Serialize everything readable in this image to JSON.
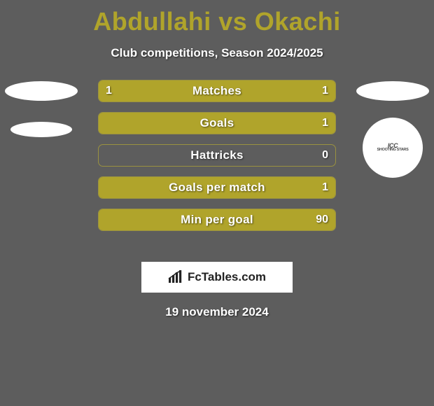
{
  "background_color": "#5d5d5d",
  "accent_color": "#b0a42b",
  "bar_bg_color": "#5d5d5d",
  "bar_border_color": "#9a9240",
  "title_color": "#b0a42b",
  "ellipse_color": "#ffffff",
  "text_color": "#ffffff",
  "title": "Abdullahi vs Okachi",
  "subtitle": "Club competitions, Season 2024/2025",
  "stats": [
    {
      "label": "Matches",
      "left_val": "1",
      "right_val": "1",
      "left_pct": 50,
      "right_pct": 50
    },
    {
      "label": "Goals",
      "left_val": "",
      "right_val": "1",
      "left_pct": 0,
      "right_pct": 100
    },
    {
      "label": "Hattricks",
      "left_val": "",
      "right_val": "0",
      "left_pct": 0,
      "right_pct": 0
    },
    {
      "label": "Goals per match",
      "left_val": "",
      "right_val": "1",
      "left_pct": 0,
      "right_pct": 100
    },
    {
      "label": "Min per goal",
      "left_val": "",
      "right_val": "90",
      "left_pct": 0,
      "right_pct": 100
    }
  ],
  "right_logo_text_main": "ICC",
  "right_logo_text_sub": "SHOOTING STARS",
  "brand_text": "FcTables.com",
  "date_text": "19 november 2024"
}
